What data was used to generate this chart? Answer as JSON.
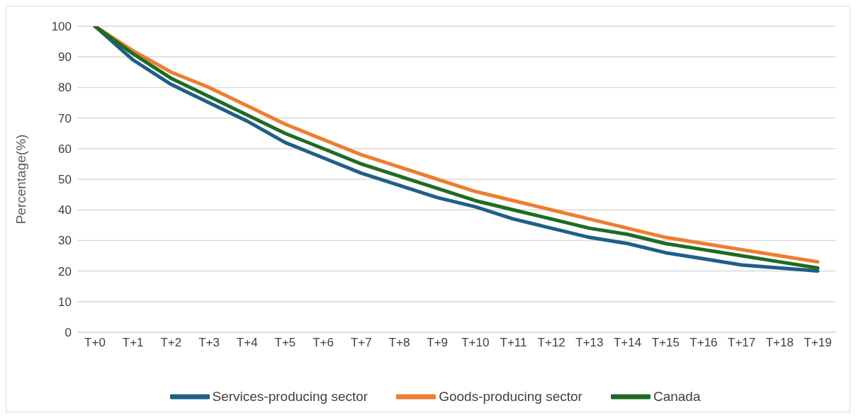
{
  "chart_data": {
    "type": "line",
    "ylabel": "Percentage(%)",
    "categories": [
      "T+0",
      "T+1",
      "T+2",
      "T+3",
      "T+4",
      "T+5",
      "T+6",
      "T+7",
      "T+8",
      "T+9",
      "T+10",
      "T+11",
      "T+12",
      "T+13",
      "T+14",
      "T+15",
      "T+16",
      "T+17",
      "T+18",
      "T+19"
    ],
    "series": [
      {
        "name": "Services-producing sector",
        "color": "#1f5f87",
        "values": [
          100,
          89,
          81,
          75,
          69,
          62,
          57,
          52,
          48,
          44,
          41,
          37,
          34,
          31,
          29,
          26,
          24,
          22,
          21,
          20
        ]
      },
      {
        "name": "Goods-producing sector",
        "color": "#ed7d31",
        "values": [
          100,
          92,
          85,
          80,
          74,
          68,
          63,
          58,
          54,
          50,
          46,
          43,
          40,
          37,
          34,
          31,
          29,
          27,
          25,
          23
        ]
      },
      {
        "name": "Canada",
        "color": "#1e6b23",
        "values": [
          100,
          91,
          83,
          77,
          71,
          65,
          60,
          55,
          51,
          47,
          43,
          40,
          37,
          34,
          32,
          29,
          27,
          25,
          23,
          21
        ]
      }
    ],
    "ylim": [
      0,
      100
    ],
    "yticks": [
      0,
      10,
      20,
      30,
      40,
      50,
      60,
      70,
      80,
      90,
      100
    ],
    "grid": "y",
    "legend": "bottom",
    "marker": "none",
    "line_style": "solid"
  }
}
